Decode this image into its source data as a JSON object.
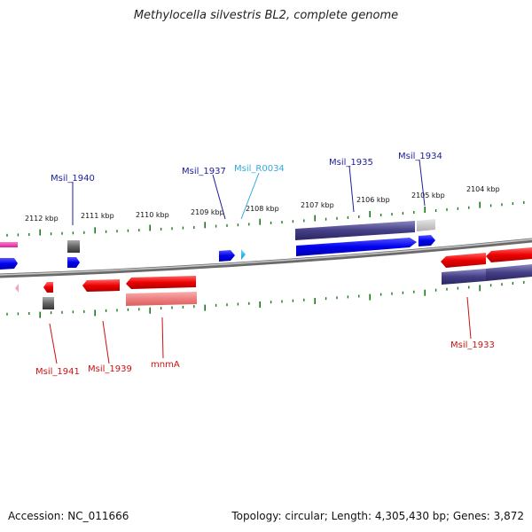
{
  "title": "Methylocella silvestris BL2, complete genome",
  "footer": {
    "accession": "Accession: NC_011666",
    "topology": "Topology: circular; Length: 4,305,430 bp; Genes: 3,872"
  },
  "colors": {
    "forward_cds": "#0000ee",
    "reverse_cds": "#ee0000",
    "forward_annotation": "#443f86",
    "reverse_annotation": "#ef8080",
    "trna": "#22bbee",
    "pseudo": "#777777",
    "ticks": "#1a7a1a",
    "backbone": "#888888"
  },
  "kbp_labels": [
    "2112 kbp",
    "2111 kbp",
    "2110 kbp",
    "2109 kbp",
    "2108 kbp",
    "2107 kbp",
    "2106 kbp",
    "2105 kbp",
    "2104 kbp"
  ],
  "gene_labels": [
    {
      "text": "Msil_1940",
      "strand": "forward",
      "color": "#1c1c99"
    },
    {
      "text": "Msil_1937",
      "strand": "forward",
      "color": "#1c1c99"
    },
    {
      "text": "Msil_R0034",
      "strand": "forward",
      "color": "#33aadd"
    },
    {
      "text": "Msil_1935",
      "strand": "forward",
      "color": "#1c1c99"
    },
    {
      "text": "Msil_1934",
      "strand": "forward",
      "color": "#1c1c99"
    },
    {
      "text": "Msil_1941",
      "strand": "reverse",
      "color": "#cc1111"
    },
    {
      "text": "Msil_1939",
      "strand": "reverse",
      "color": "#cc1111"
    },
    {
      "text": "mnmA",
      "strand": "reverse",
      "color": "#cc1111"
    },
    {
      "text": "Msil_1933",
      "strand": "reverse",
      "color": "#cc1111"
    }
  ]
}
